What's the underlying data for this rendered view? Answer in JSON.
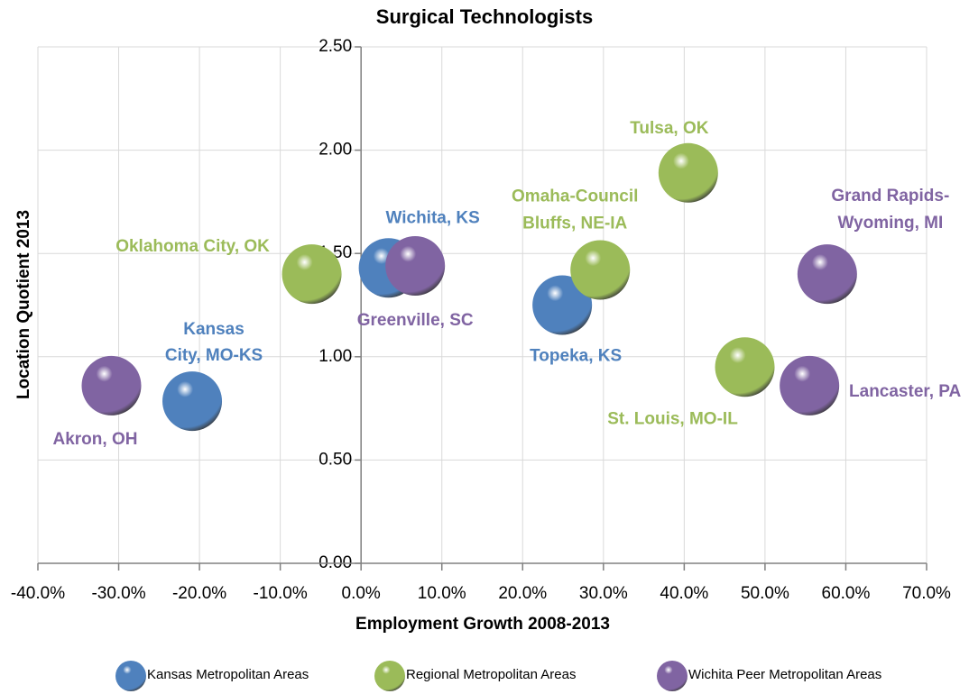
{
  "chart_data": {
    "type": "scatter",
    "title": "Surgical Technologists",
    "x_label": "Employment Growth 2008-2013",
    "y_label": "Location Quotient 2013",
    "xlim": [
      -40,
      70
    ],
    "ylim": [
      0,
      2.5
    ],
    "xticks": [
      {
        "value": -40,
        "label": "-40.0%"
      },
      {
        "value": -30,
        "label": "-30.0%"
      },
      {
        "value": -20,
        "label": "-20.0%"
      },
      {
        "value": -10,
        "label": "-10.0%"
      },
      {
        "value": 0,
        "label": "0.0%"
      },
      {
        "value": 10,
        "label": "10.0%"
      },
      {
        "value": 20,
        "label": "20.0%"
      },
      {
        "value": 30,
        "label": "30.0%"
      },
      {
        "value": 40,
        "label": "40.0%"
      },
      {
        "value": 50,
        "label": "50.0%"
      },
      {
        "value": 60,
        "label": "60.0%"
      },
      {
        "value": 70,
        "label": "70.0%"
      }
    ],
    "yticks": [
      {
        "value": 0,
        "label": "0.00"
      },
      {
        "value": 0.5,
        "label": "0.50"
      },
      {
        "value": 1,
        "label": "1.00"
      },
      {
        "value": 1.5,
        "label": "1.50"
      },
      {
        "value": 2,
        "label": "2.00"
      },
      {
        "value": 2.5,
        "label": "2.50"
      }
    ],
    "grid": true,
    "legend": "bottom",
    "series": [
      {
        "name": "Kansas Metropolitan Areas",
        "color": "#4f81bd",
        "x": [
          -20.9,
          3.4,
          24.9
        ],
        "values": [
          0.785,
          1.43,
          1.25
        ],
        "labels": [
          [
            "Kansas",
            "City, MO-KS"
          ],
          [
            "Wichita, KS"
          ],
          [
            "Topeka, KS"
          ]
        ]
      },
      {
        "name": "Regional Metropolitan Areas",
        "color": "#9bbb59",
        "x": [
          -6.1,
          29.6,
          40.5,
          47.5
        ],
        "values": [
          1.4,
          1.42,
          1.89,
          0.95
        ],
        "labels": [
          [
            "Oklahoma City, OK"
          ],
          [
            "Omaha-Council",
            "Bluffs, NE-IA"
          ],
          [
            "Tulsa, OK"
          ],
          [
            "St. Louis, MO-IL"
          ]
        ]
      },
      {
        "name": "Wichita Peer Metropolitan Areas",
        "color": "#8064a2",
        "x": [
          -30.9,
          6.7,
          55.5,
          57.7
        ],
        "values": [
          0.86,
          1.44,
          0.86,
          1.4
        ],
        "labels": [
          [
            "Akron, OH"
          ],
          [
            "Greenville, SC"
          ],
          [
            "Lancaster, PA"
          ],
          [
            "Grand Rapids-",
            "Wyoming, MI"
          ]
        ]
      }
    ]
  }
}
